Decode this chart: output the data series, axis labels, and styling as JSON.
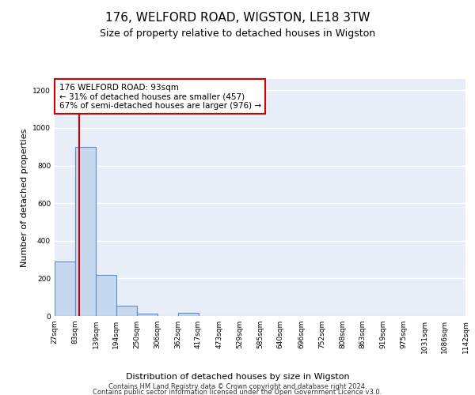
{
  "title1": "176, WELFORD ROAD, WIGSTON, LE18 3TW",
  "title2": "Size of property relative to detached houses in Wigston",
  "xlabel": "Distribution of detached houses by size in Wigston",
  "ylabel": "Number of detached properties",
  "bin_edges": [
    27,
    83,
    139,
    194,
    250,
    306,
    362,
    417,
    473,
    529,
    585,
    640,
    696,
    752,
    808,
    863,
    919,
    975,
    1031,
    1086,
    1142
  ],
  "bin_labels": [
    "27sqm",
    "83sqm",
    "139sqm",
    "194sqm",
    "250sqm",
    "306sqm",
    "362sqm",
    "417sqm",
    "473sqm",
    "529sqm",
    "585sqm",
    "640sqm",
    "696sqm",
    "752sqm",
    "808sqm",
    "863sqm",
    "919sqm",
    "975sqm",
    "1031sqm",
    "1086sqm",
    "1142sqm"
  ],
  "bar_heights": [
    290,
    900,
    220,
    55,
    12,
    0,
    15,
    0,
    0,
    0,
    0,
    0,
    0,
    0,
    0,
    0,
    0,
    0,
    0,
    0
  ],
  "bar_color": "#c5d8f0",
  "bar_edge_color": "#5a8fc3",
  "red_line_x": 93,
  "annotation_text": "176 WELFORD ROAD: 93sqm\n← 31% of detached houses are smaller (457)\n67% of semi-detached houses are larger (976) →",
  "annotation_box_color": "#ffffff",
  "annotation_box_edge": "#cc0000",
  "ylim": [
    0,
    1260
  ],
  "yticks": [
    0,
    200,
    400,
    600,
    800,
    1000,
    1200
  ],
  "background_color": "#e8eef7",
  "grid_color": "#ffffff",
  "footer1": "Contains HM Land Registry data © Crown copyright and database right 2024.",
  "footer2": "Contains public sector information licensed under the Open Government Licence v3.0.",
  "title1_fontsize": 11,
  "title2_fontsize": 9,
  "xlabel_fontsize": 8,
  "ylabel_fontsize": 8,
  "tick_fontsize": 6.5,
  "footer_fontsize": 6,
  "annotation_fontsize": 7.5
}
